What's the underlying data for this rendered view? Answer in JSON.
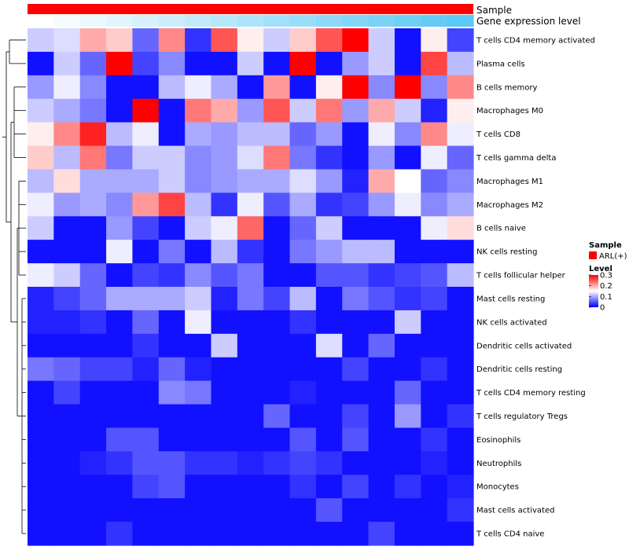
{
  "chart_data": {
    "type": "heatmap",
    "annotations": [
      {
        "name": "Sample",
        "color": "#ff0000"
      },
      {
        "name": "Gene expression level",
        "colors": [
          "#ffffff",
          "#5bc8f5"
        ]
      }
    ],
    "rows": [
      "T cells CD4 memory activated",
      "Plasma cells",
      "B cells memory",
      "Macrophages M0",
      "T cells CD8",
      "T cells gamma delta",
      "Macrophages M1",
      "Macrophages M2",
      "B cells naive",
      "NK cells resting",
      "T cells follicular helper",
      "Mast cells resting",
      "NK cells activated",
      "Dendritic cells activated",
      "Dendritic cells resting",
      "T cells CD4 memory resting",
      "T cells regulatory  Tregs",
      "Eosinophils",
      "Neutrophils",
      "Monocytes",
      "Mast cells activated",
      "T cells CD4 naive"
    ],
    "values": [
      [
        0.12,
        0.13,
        0.2,
        0.18,
        0.06,
        0.22,
        0.03,
        0.25,
        0.16,
        0.12,
        0.18,
        0.25,
        0.3,
        0.12,
        0.01,
        0.16,
        0.04
      ],
      [
        0.01,
        0.12,
        0.06,
        0.3,
        0.04,
        0.08,
        0.01,
        0.01,
        0.12,
        0.01,
        0.3,
        0.01,
        0.09,
        0.12,
        0.01,
        0.26,
        0.11
      ],
      [
        0.09,
        0.14,
        0.08,
        0.01,
        0.01,
        0.11,
        0.14,
        0.1,
        0.01,
        0.21,
        0.01,
        0.16,
        0.3,
        0.08,
        0.3,
        0.08,
        0.22
      ],
      [
        0.12,
        0.1,
        0.07,
        0.01,
        0.3,
        0.01,
        0.23,
        0.2,
        0.09,
        0.25,
        0.12,
        0.23,
        0.09,
        0.2,
        0.12,
        0.02,
        0.16
      ],
      [
        0.16,
        0.22,
        0.28,
        0.11,
        0.14,
        0.01,
        0.1,
        0.09,
        0.11,
        0.11,
        0.06,
        0.09,
        0.01,
        0.14,
        0.08,
        0.22,
        0.14
      ],
      [
        0.18,
        0.11,
        0.23,
        0.07,
        0.12,
        0.12,
        0.08,
        0.09,
        0.13,
        0.23,
        0.07,
        0.03,
        0.01,
        0.09,
        0.01,
        0.14,
        0.06
      ],
      [
        0.11,
        0.17,
        0.1,
        0.1,
        0.1,
        0.12,
        0.08,
        0.09,
        0.1,
        0.1,
        0.13,
        0.09,
        0.02,
        0.2,
        0.15,
        0.06,
        0.08
      ],
      [
        0.14,
        0.09,
        0.1,
        0.08,
        0.21,
        0.26,
        0.11,
        0.03,
        0.14,
        0.05,
        0.1,
        0.03,
        0.04,
        0.09,
        0.14,
        0.08,
        0.1
      ],
      [
        0.12,
        0.01,
        0.01,
        0.09,
        0.04,
        0.01,
        0.12,
        0.14,
        0.24,
        0.01,
        0.06,
        0.12,
        0.01,
        0.01,
        0.01,
        0.14,
        0.17
      ],
      [
        0.01,
        0.01,
        0.01,
        0.14,
        0.01,
        0.07,
        0.01,
        0.11,
        0.03,
        0.01,
        0.07,
        0.09,
        0.11,
        0.11,
        0.01,
        0.01,
        0.01
      ],
      [
        0.14,
        0.12,
        0.06,
        0.01,
        0.04,
        0.03,
        0.08,
        0.05,
        0.07,
        0.01,
        0.01,
        0.05,
        0.05,
        0.03,
        0.04,
        0.05,
        0.11
      ],
      [
        0.02,
        0.04,
        0.06,
        0.1,
        0.1,
        0.1,
        0.12,
        0.02,
        0.07,
        0.04,
        0.11,
        0.01,
        0.07,
        0.05,
        0.03,
        0.04,
        0.01
      ],
      [
        0.02,
        0.02,
        0.03,
        0.01,
        0.06,
        0.01,
        0.14,
        0.01,
        0.01,
        0.01,
        0.03,
        0.01,
        0.01,
        0.01,
        0.12,
        0.01,
        0.01
      ],
      [
        0.01,
        0.01,
        0.01,
        0.01,
        0.03,
        0.01,
        0.01,
        0.12,
        0.01,
        0.01,
        0.01,
        0.13,
        0.01,
        0.06,
        0.01,
        0.01,
        0.01
      ],
      [
        0.07,
        0.06,
        0.04,
        0.04,
        0.02,
        0.06,
        0.02,
        0.01,
        0.01,
        0.01,
        0.01,
        0.01,
        0.04,
        0.01,
        0.01,
        0.03,
        0.01
      ],
      [
        0.01,
        0.04,
        0.01,
        0.01,
        0.01,
        0.08,
        0.07,
        0.01,
        0.01,
        0.01,
        0.02,
        0.01,
        0.01,
        0.01,
        0.06,
        0.01,
        0.01
      ],
      [
        0.01,
        0.01,
        0.01,
        0.01,
        0.01,
        0.01,
        0.01,
        0.01,
        0.01,
        0.06,
        0.01,
        0.01,
        0.04,
        0.01,
        0.09,
        0.01,
        0.03
      ],
      [
        0.01,
        0.01,
        0.01,
        0.05,
        0.05,
        0.01,
        0.01,
        0.01,
        0.01,
        0.01,
        0.05,
        0.01,
        0.05,
        0.01,
        0.01,
        0.03,
        0.01
      ],
      [
        0.01,
        0.01,
        0.02,
        0.03,
        0.05,
        0.05,
        0.03,
        0.03,
        0.02,
        0.03,
        0.04,
        0.03,
        0.01,
        0.01,
        0.01,
        0.02,
        0.01
      ],
      [
        0.01,
        0.01,
        0.01,
        0.01,
        0.04,
        0.05,
        0.01,
        0.01,
        0.01,
        0.01,
        0.03,
        0.01,
        0.04,
        0.01,
        0.03,
        0.01,
        0.02
      ],
      [
        0.01,
        0.01,
        0.01,
        0.01,
        0.01,
        0.01,
        0.01,
        0.01,
        0.01,
        0.01,
        0.01,
        0.05,
        0.01,
        0.01,
        0.01,
        0.01,
        0.03
      ],
      [
        0.01,
        0.01,
        0.01,
        0.03,
        0.01,
        0.01,
        0.01,
        0.01,
        0.01,
        0.01,
        0.01,
        0.01,
        0.01,
        0.04,
        0.01,
        0.01,
        0.01
      ]
    ],
    "color_scale": {
      "min": 0,
      "mid": 0.15,
      "max": 0.3,
      "low_color": "#0000ff",
      "mid_color": "#ffffff",
      "high_color": "#ff0000"
    },
    "legend": {
      "sample_title": "Sample",
      "sample_entry": "ARL(+)",
      "sample_color": "#ff0000",
      "level_title": "Level",
      "ticks": [
        "0.3",
        "0.2",
        "0.1",
        "0"
      ],
      "tick_values": [
        0.3,
        0.2,
        0.1,
        0
      ]
    }
  }
}
